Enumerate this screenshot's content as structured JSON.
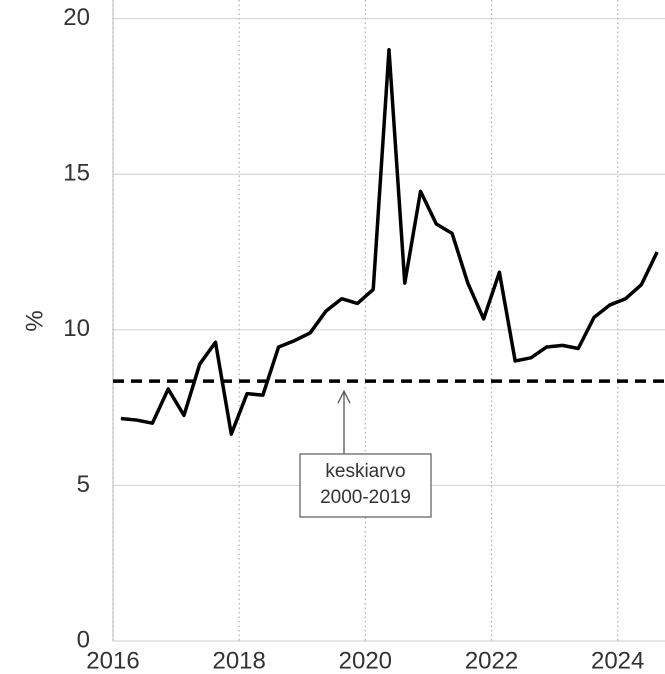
{
  "chart_data": {
    "type": "line",
    "y_label": "%",
    "x": [
      2016.125,
      2016.375,
      2016.625,
      2016.875,
      2017.125,
      2017.375,
      2017.625,
      2017.875,
      2018.125,
      2018.375,
      2018.625,
      2018.875,
      2019.125,
      2019.375,
      2019.625,
      2019.875,
      2020.125,
      2020.375,
      2020.625,
      2020.875,
      2021.125,
      2021.375,
      2021.625,
      2021.875,
      2022.125,
      2022.375,
      2022.625,
      2022.875,
      2023.125,
      2023.375,
      2023.625,
      2023.875,
      2024.125,
      2024.375,
      2024.625
    ],
    "series": [
      {
        "color": "#000000",
        "values": [
          7.15,
          7.1,
          7.0,
          8.1,
          7.25,
          8.9,
          9.6,
          6.65,
          7.95,
          7.9,
          9.45,
          9.65,
          9.9,
          10.6,
          11.0,
          10.85,
          11.3,
          19.0,
          11.5,
          14.45,
          13.4,
          13.1,
          11.5,
          10.35,
          11.85,
          9.0,
          9.1,
          9.45,
          9.5,
          9.4,
          10.4,
          10.8,
          11.0,
          11.45,
          12.5
        ]
      }
    ],
    "reference_line": {
      "value": 8.35,
      "label": [
        "keskiarvo",
        "2000-2019"
      ]
    },
    "xlim": [
      2016,
      2024.75
    ],
    "xticks": [
      2016,
      2018,
      2020,
      2022,
      2024
    ],
    "ylim": [
      0,
      20.6
    ],
    "yticks": [
      0,
      5,
      10,
      15,
      20
    ],
    "grid": true
  }
}
